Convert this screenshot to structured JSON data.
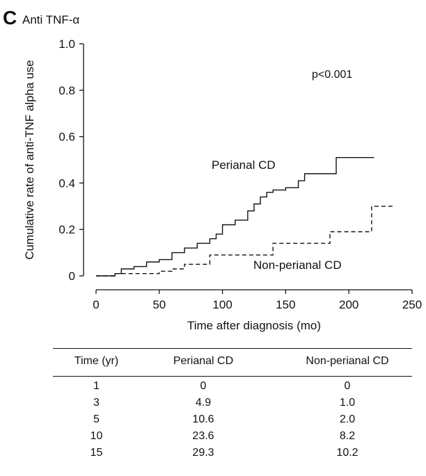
{
  "panel_letter": "C",
  "panel_title": "Anti TNF-α",
  "chart_data": {
    "type": "line",
    "xlabel": "Time after diagnosis (mo)",
    "ylabel": "Cumulative rate of anti-TNF alpha use",
    "xlim": [
      0,
      250
    ],
    "ylim": [
      0,
      1.0
    ],
    "x_ticks": [
      0,
      50,
      100,
      150,
      200,
      250
    ],
    "y_ticks": [
      0,
      0.2,
      0.4,
      0.6,
      0.8,
      1.0
    ],
    "y_tick_labels": [
      "0",
      "0.2",
      "0.4",
      "0.6",
      "0.8",
      "1.0"
    ],
    "annotation": "p<0.001",
    "series": [
      {
        "name": "Perianal CD",
        "style": "solid",
        "color": "#111111",
        "x": [
          0,
          15,
          20,
          30,
          40,
          50,
          60,
          70,
          80,
          90,
          95,
          100,
          110,
          120,
          125,
          130,
          135,
          140,
          150,
          160,
          165,
          185,
          190,
          220
        ],
        "y": [
          0,
          0.01,
          0.03,
          0.04,
          0.06,
          0.07,
          0.1,
          0.12,
          0.14,
          0.16,
          0.18,
          0.22,
          0.24,
          0.28,
          0.31,
          0.34,
          0.36,
          0.37,
          0.38,
          0.41,
          0.44,
          0.44,
          0.51,
          0.51
        ]
      },
      {
        "name": "Non-perianal CD",
        "style": "dashed",
        "color": "#111111",
        "x": [
          0,
          15,
          20,
          50,
          60,
          70,
          90,
          130,
          140,
          180,
          185,
          215,
          218,
          235
        ],
        "y": [
          0,
          0.01,
          0.01,
          0.02,
          0.03,
          0.05,
          0.09,
          0.09,
          0.14,
          0.14,
          0.19,
          0.19,
          0.3,
          0.3
        ]
      }
    ]
  },
  "table": {
    "headers": [
      "Time (yr)",
      "Perianal CD",
      "Non-perianal CD"
    ],
    "rows": [
      [
        "1",
        "0",
        "0"
      ],
      [
        "3",
        "4.9",
        "1.0"
      ],
      [
        "5",
        "10.6",
        "2.0"
      ],
      [
        "10",
        "23.6",
        "8.2"
      ],
      [
        "15",
        "29.3",
        "10.2"
      ]
    ]
  }
}
